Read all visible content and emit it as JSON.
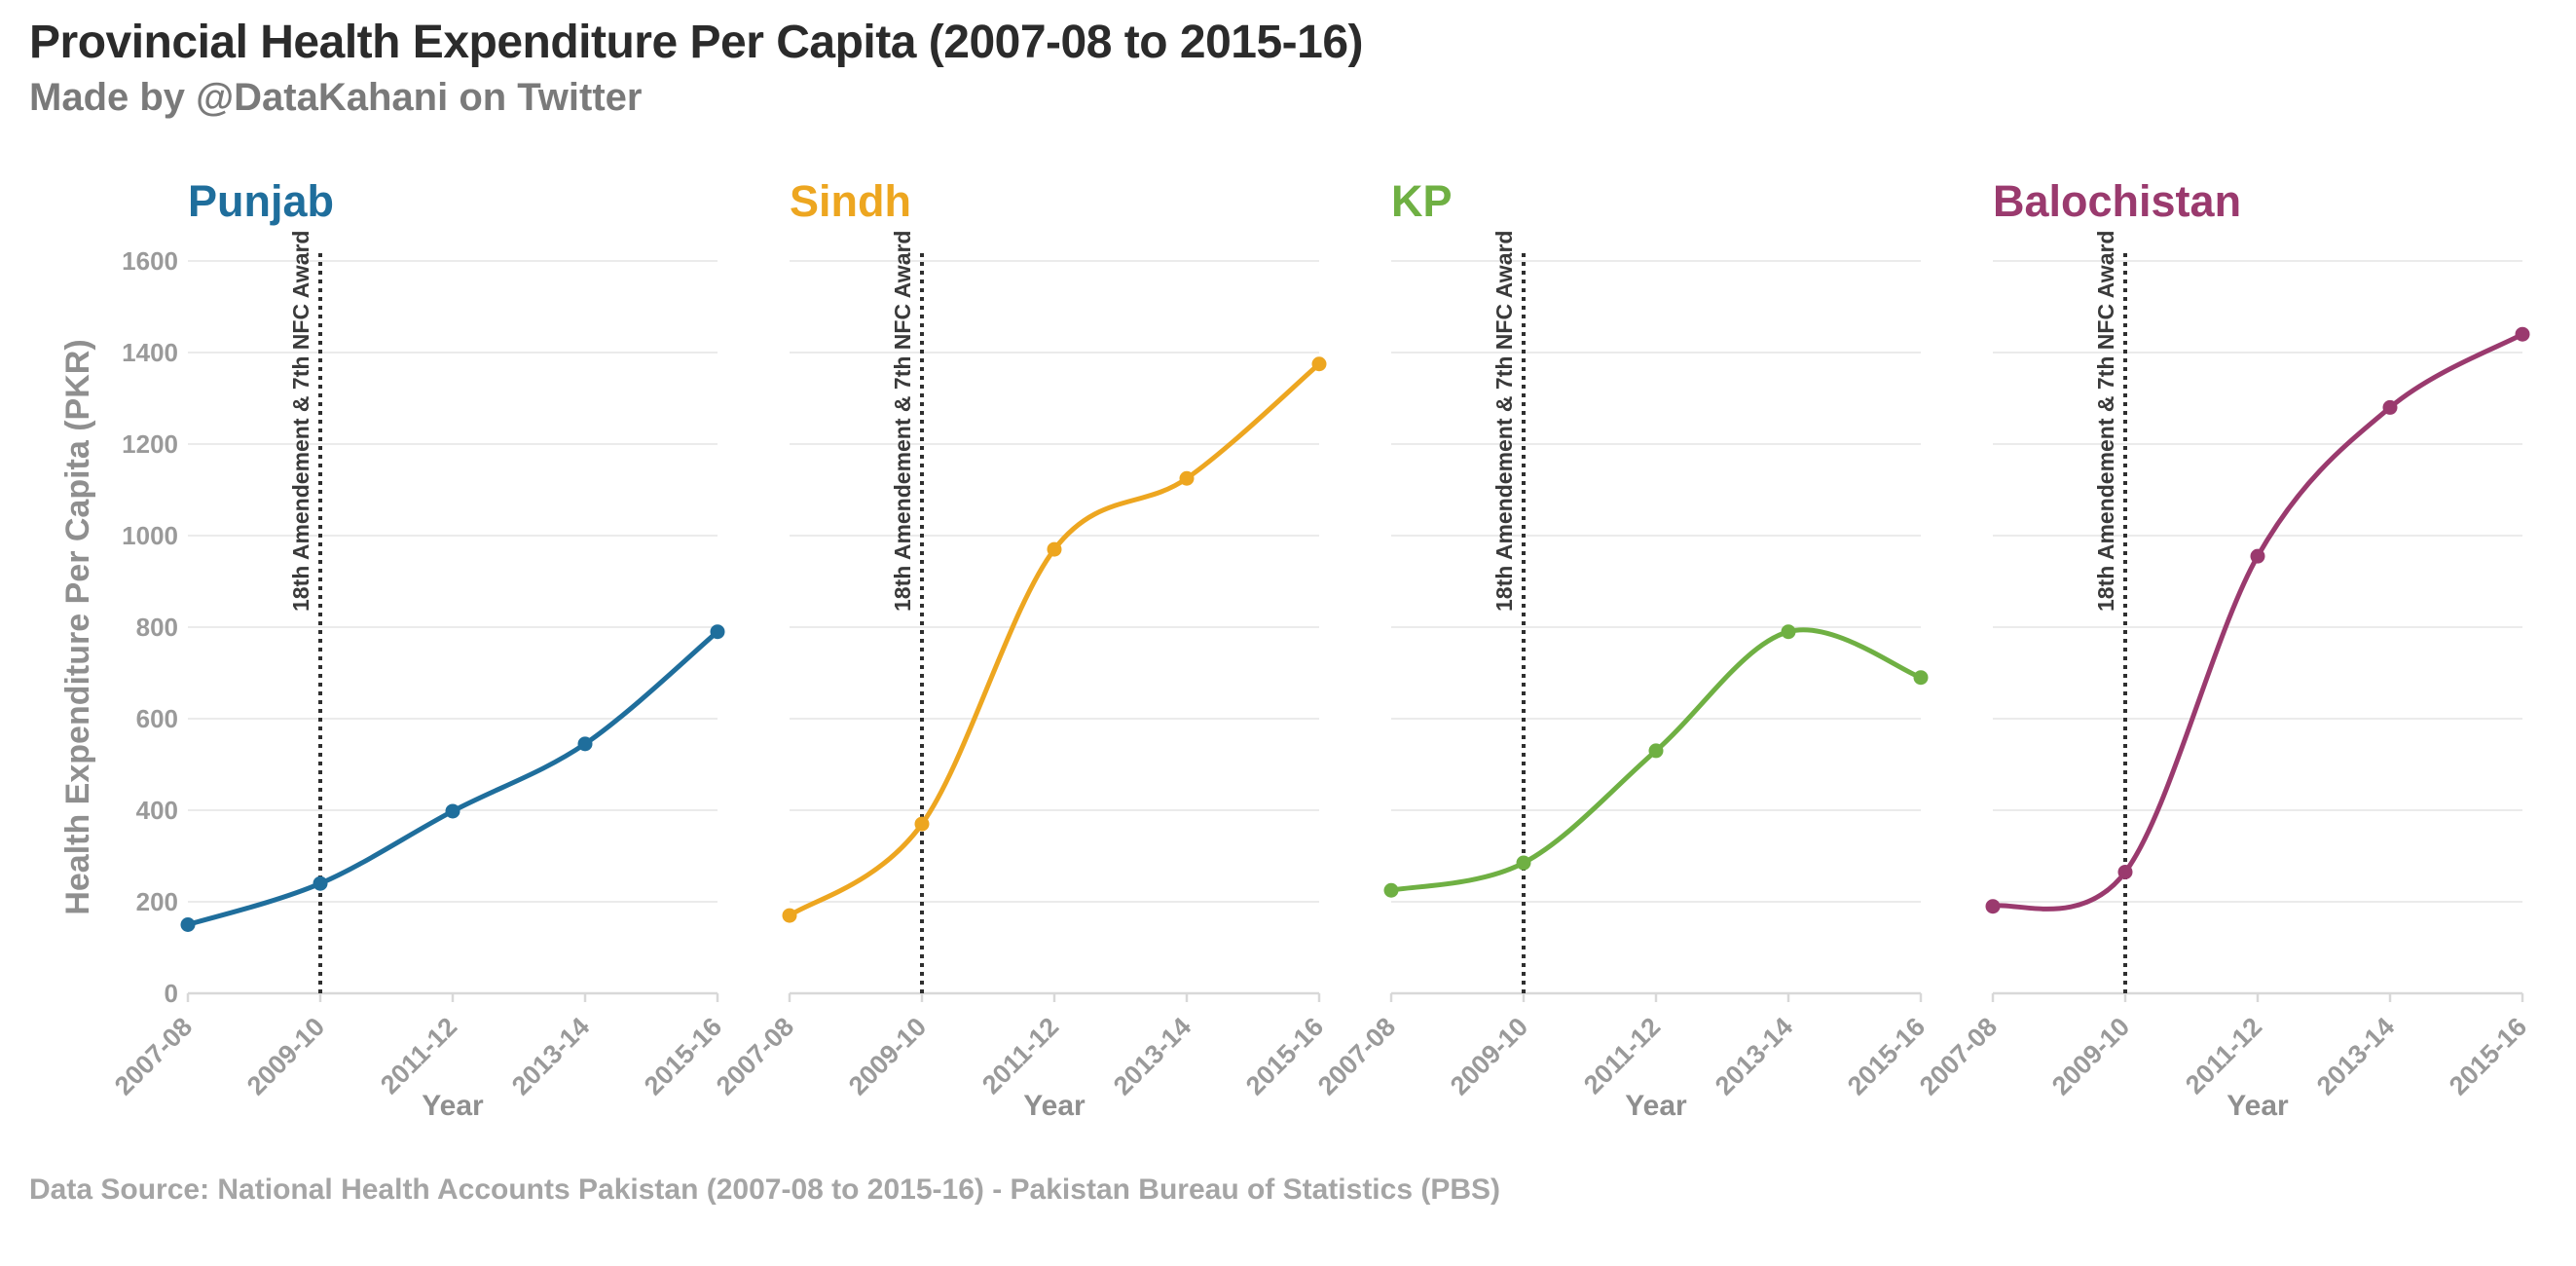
{
  "header": {
    "title": "Provincial Health Expenditure Per Capita (2007-08 to 2015-16)",
    "subtitle": "Made by @DataKahani on Twitter"
  },
  "footer": {
    "text": "Data Source: National Health Accounts Pakistan (2007-08 to 2015-16) - Pakistan Bureau of Statistics (PBS)"
  },
  "chart_data": {
    "type": "line",
    "x": [
      "2007-08",
      "2009-10",
      "2011-12",
      "2013-14",
      "2015-16"
    ],
    "xlabel": "Year",
    "ylabel": "Health Expenditure Per Capita (PKR)",
    "ylim": [
      0,
      1600
    ],
    "yticks": [
      0,
      200,
      400,
      600,
      800,
      1000,
      1200,
      1400,
      1600
    ],
    "grid": true,
    "legend": "none",
    "annotation": {
      "x_value": "2009-10",
      "label": "18th Amendement & 7th NFC Award",
      "line_style": "dotted-vertical"
    },
    "facets": [
      {
        "name": "Punjab",
        "color": "#1f6e9c",
        "values": [
          150,
          240,
          398,
          545,
          790
        ]
      },
      {
        "name": "Sindh",
        "color": "#eda620",
        "values": [
          170,
          370,
          970,
          1125,
          1375
        ]
      },
      {
        "name": "KP",
        "color": "#6fb043",
        "values": [
          225,
          285,
          530,
          790,
          690
        ]
      },
      {
        "name": "Balochistan",
        "color": "#9a3a6e",
        "values": [
          190,
          265,
          955,
          1280,
          1440
        ]
      }
    ],
    "colors": {
      "grid": "#ebebeb",
      "axis_line": "#d8d8d8",
      "tick_text": "#9a9a9a",
      "axis_title_text": "#8f8f8f",
      "annotation_line": "#2f2f2f",
      "annotation_text": "#3a3a3a"
    }
  }
}
